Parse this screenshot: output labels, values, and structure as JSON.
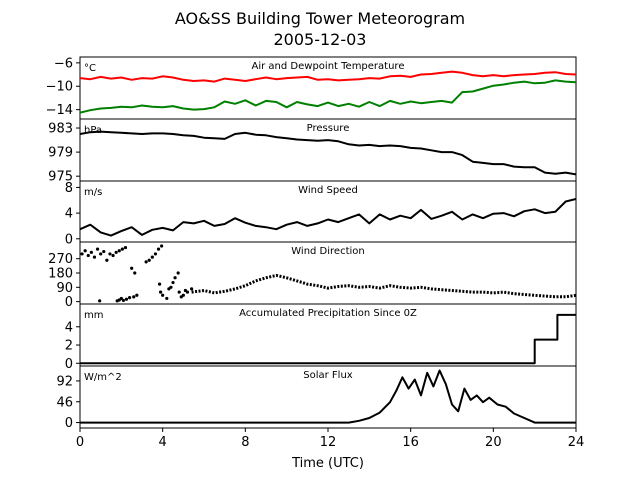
{
  "figure": {
    "title": "AO&SS Building Tower Meteorogram",
    "subtitle": "2005-12-03",
    "xlabel": "Time (UTC)"
  },
  "chart_data": {
    "type": "line",
    "x_axis": {
      "label": "Time (UTC)",
      "range": [
        0,
        24
      ],
      "ticks": [
        0,
        4,
        8,
        12,
        16,
        20,
        24
      ]
    },
    "panels": [
      {
        "id": "temp",
        "title": "Air and Dewpoint Temperature",
        "unit": "°C",
        "ylim": [
          -15.6,
          -5
        ],
        "yticks": [
          -6,
          -10,
          -14
        ],
        "type": "line",
        "series": [
          {
            "color": "#ff0000",
            "x": [
              0,
              0.5,
              1,
              1.5,
              2,
              2.5,
              3,
              3.5,
              4,
              4.5,
              5,
              5.5,
              6,
              6.5,
              7,
              7.5,
              8,
              8.5,
              9,
              9.5,
              10,
              10.5,
              11,
              11.5,
              12,
              12.5,
              13,
              13.5,
              14,
              14.5,
              15,
              15.5,
              16,
              16.5,
              17,
              17.5,
              18,
              18.5,
              19,
              19.5,
              20,
              20.5,
              21,
              21.5,
              22,
              22.5,
              23,
              23.5,
              24
            ],
            "values": [
              -8.6,
              -8.8,
              -8.4,
              -8.7,
              -8.5,
              -8.9,
              -8.6,
              -8.7,
              -8.3,
              -8.5,
              -8.9,
              -9.1,
              -9.0,
              -9.2,
              -8.7,
              -8.9,
              -9.1,
              -8.8,
              -8.5,
              -8.8,
              -8.6,
              -8.5,
              -8.4,
              -8.9,
              -8.8,
              -9.0,
              -8.9,
              -8.8,
              -8.6,
              -8.7,
              -8.3,
              -8.2,
              -8.4,
              -8.0,
              -7.9,
              -7.7,
              -7.5,
              -7.7,
              -8.1,
              -8.3,
              -8.1,
              -8.3,
              -8.1,
              -8.0,
              -7.9,
              -7.7,
              -7.6,
              -7.9,
              -8.0
            ]
          },
          {
            "color": "#008000",
            "x": [
              0,
              0.5,
              1,
              1.5,
              2,
              2.5,
              3,
              3.5,
              4,
              4.5,
              5,
              5.5,
              6,
              6.5,
              7,
              7.5,
              8,
              8.5,
              9,
              9.5,
              10,
              10.5,
              11,
              11.5,
              12,
              12.5,
              13,
              13.5,
              14,
              14.5,
              15,
              15.5,
              16,
              16.5,
              17,
              17.5,
              18,
              18.5,
              19,
              19.5,
              20,
              20.5,
              21,
              21.5,
              22,
              22.5,
              23,
              23.5,
              24
            ],
            "values": [
              -14.5,
              -14.1,
              -13.8,
              -13.7,
              -13.5,
              -13.6,
              -13.3,
              -13.5,
              -13.6,
              -13.4,
              -13.8,
              -14.0,
              -13.9,
              -13.6,
              -12.6,
              -13.0,
              -12.4,
              -13.3,
              -12.5,
              -12.7,
              -13.6,
              -12.7,
              -13.1,
              -13.4,
              -12.8,
              -13.4,
              -13.0,
              -13.5,
              -12.7,
              -13.4,
              -12.5,
              -13.0,
              -12.6,
              -12.9,
              -12.7,
              -12.5,
              -12.8,
              -11.0,
              -10.9,
              -10.4,
              -9.9,
              -9.7,
              -9.4,
              -9.2,
              -9.5,
              -9.4,
              -9.0,
              -9.2,
              -9.3
            ]
          }
        ]
      },
      {
        "id": "pressure",
        "title": "Pressure",
        "unit": "hPa",
        "ylim": [
          974.2,
          984.5
        ],
        "yticks": [
          983,
          979,
          975
        ],
        "type": "line",
        "series": [
          {
            "color": "#000000",
            "x": [
              0,
              0.5,
              1,
              1.5,
              2,
              2.5,
              3,
              3.5,
              4,
              4.5,
              5,
              5.5,
              6,
              6.5,
              7,
              7.5,
              8,
              8.5,
              9,
              9.5,
              10,
              10.5,
              11,
              11.5,
              12,
              12.5,
              13,
              13.5,
              14,
              14.5,
              15,
              15.5,
              16,
              16.5,
              17,
              17.5,
              18,
              18.5,
              19,
              19.5,
              20,
              20.5,
              21,
              21.5,
              22,
              22.5,
              23,
              23.5,
              24
            ],
            "values": [
              982.0,
              982.3,
              982.4,
              982.3,
              982.2,
              982.1,
              982.0,
              982.1,
              982.1,
              982.0,
              981.8,
              981.7,
              981.4,
              981.3,
              981.2,
              982.0,
              982.2,
              981.9,
              981.8,
              981.5,
              981.3,
              981.1,
              981.0,
              980.9,
              981.0,
              980.8,
              980.3,
              980.1,
              980.2,
              980.0,
              980.1,
              980.0,
              979.7,
              979.6,
              979.3,
              979.0,
              979.0,
              978.5,
              977.4,
              977.2,
              977.0,
              977.0,
              976.6,
              976.5,
              976.5,
              975.6,
              975.4,
              975.6,
              975.3
            ]
          }
        ]
      },
      {
        "id": "wind-speed",
        "title": "Wind Speed",
        "unit": "m/s",
        "ylim": [
          -0.5,
          9
        ],
        "yticks": [
          8,
          4,
          0
        ],
        "type": "line",
        "series": [
          {
            "color": "#000000",
            "x": [
              0,
              0.5,
              1,
              1.5,
              2,
              2.5,
              3,
              3.5,
              4,
              4.5,
              5,
              5.5,
              6,
              6.5,
              7,
              7.5,
              8,
              8.5,
              9,
              9.5,
              10,
              10.5,
              11,
              11.5,
              12,
              12.5,
              13,
              13.5,
              14,
              14.5,
              15,
              15.5,
              16,
              16.5,
              17,
              17.5,
              18,
              18.5,
              19,
              19.5,
              20,
              20.5,
              21,
              21.5,
              22,
              22.5,
              23,
              23.5,
              24
            ],
            "values": [
              1.5,
              2.2,
              1.0,
              0.5,
              1.2,
              1.8,
              0.6,
              1.4,
              1.7,
              1.3,
              2.6,
              2.4,
              2.8,
              2.0,
              2.3,
              3.2,
              2.5,
              2.0,
              1.8,
              1.5,
              2.2,
              2.6,
              2.0,
              2.4,
              3.0,
              2.6,
              3.2,
              3.8,
              2.4,
              3.8,
              3.0,
              3.6,
              3.2,
              4.5,
              3.1,
              3.6,
              4.2,
              3.0,
              3.8,
              3.2,
              3.9,
              4.0,
              3.5,
              4.3,
              4.6,
              4.0,
              4.2,
              5.8,
              6.2
            ]
          }
        ]
      },
      {
        "id": "wind-direction",
        "title": "Wind Direction",
        "ylim": [
          -15,
          375
        ],
        "yticks": [
          270,
          180,
          90,
          0
        ],
        "type": "scatter",
        "series": [
          {
            "color": "#000000",
            "x": [
              0.1,
              0.25,
              0.4,
              0.55,
              0.7,
              0.85,
              1.0,
              1.15,
              1.3,
              1.45,
              1.6,
              1.75,
              1.9,
              2.05,
              2.2,
              0.95,
              1.8,
              1.9,
              2.0,
              2.1,
              2.25,
              2.4,
              2.6,
              2.75,
              2.5,
              2.65,
              3.2,
              3.35,
              3.5,
              3.65,
              3.8,
              3.95,
              3.85,
              3.9,
              4.0,
              4.2,
              4.3,
              4.4,
              4.5,
              4.6,
              4.75,
              4.8,
              4.9,
              5.0,
              5.1,
              5.2,
              5.4
            ],
            "values": [
              300,
              320,
              290,
              310,
              280,
              330,
              300,
              315,
              260,
              300,
              290,
              310,
              320,
              330,
              340,
              5,
              5,
              10,
              20,
              8,
              15,
              25,
              30,
              40,
              210,
              180,
              250,
              260,
              280,
              300,
              330,
              350,
              110,
              60,
              40,
              20,
              80,
              90,
              120,
              150,
              180,
              60,
              30,
              40,
              70,
              60,
              80
            ],
            "continuous_from": 5.4,
            "continuous_x": [
              5.4,
              6,
              6.5,
              7,
              7.5,
              8,
              8.5,
              9,
              9.5,
              10,
              10.5,
              11,
              11.5,
              12,
              12.5,
              13,
              13.5,
              14,
              14.5,
              15,
              15.5,
              16,
              16.5,
              17,
              17.5,
              18,
              18.5,
              19,
              19.5,
              20,
              20.5,
              21,
              21.5,
              22,
              22.5,
              23,
              23.5,
              24
            ],
            "continuous_values": [
              60,
              70,
              55,
              65,
              80,
              100,
              130,
              150,
              165,
              150,
              130,
              110,
              100,
              85,
              95,
              100,
              90,
              95,
              85,
              100,
              90,
              85,
              90,
              80,
              75,
              70,
              65,
              60,
              60,
              55,
              60,
              50,
              45,
              40,
              35,
              30,
              30,
              40
            ]
          }
        ]
      },
      {
        "id": "precip",
        "title": "Accumulated Precipitation Since 0Z",
        "unit": "mm",
        "ylim": [
          -0.3,
          6.5
        ],
        "yticks": [
          4,
          2,
          0
        ],
        "type": "step",
        "series": [
          {
            "color": "#000000",
            "x": [
              0,
              22.0,
              22.0,
              23.1,
              23.1,
              24
            ],
            "values": [
              0,
              0,
              2.6,
              2.6,
              5.3,
              5.3
            ]
          }
        ]
      },
      {
        "id": "solar",
        "title": "Solar Flux",
        "unit": "W/m^2",
        "ylim": [
          -12,
          125
        ],
        "yticks": [
          92,
          46,
          0
        ],
        "type": "line",
        "series": [
          {
            "color": "#000000",
            "x": [
              0,
              13.0,
              13.5,
              14.0,
              14.5,
              15.0,
              15.3,
              15.6,
              15.9,
              16.2,
              16.5,
              16.8,
              17.1,
              17.4,
              17.7,
              18.0,
              18.3,
              18.6,
              18.9,
              19.2,
              19.5,
              19.8,
              20.2,
              20.6,
              21.0,
              21.5,
              22.0,
              24
            ],
            "values": [
              0,
              0,
              4,
              10,
              22,
              45,
              70,
              100,
              75,
              95,
              60,
              110,
              80,
              115,
              85,
              40,
              25,
              75,
              50,
              60,
              45,
              55,
              40,
              35,
              20,
              10,
              0,
              0
            ]
          }
        ]
      }
    ]
  }
}
